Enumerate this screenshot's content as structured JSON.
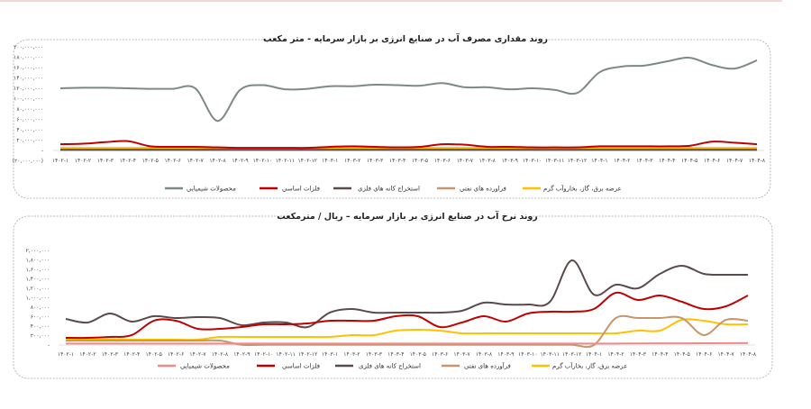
{
  "chart_data": [
    {
      "type": "line",
      "title": "روند مقداری مصرف آب در صنایع انرژی بر بازار سرمایه - متر مکعب",
      "xlabel": "",
      "ylabel": "",
      "ylim": [
        -20,
        200
      ],
      "y_unit_note": "millions",
      "yticks": [
        {
          "value": 200,
          "label": "۲۰۰,۰۰۰,۰۰۰"
        },
        {
          "value": 180,
          "label": "۱۸۰,۰۰۰,۰۰۰"
        },
        {
          "value": 160,
          "label": "۱۶۰,۰۰۰,۰۰۰"
        },
        {
          "value": 140,
          "label": "۱۴۰,۰۰۰,۰۰۰"
        },
        {
          "value": 120,
          "label": "۱۲۰,۰۰۰,۰۰۰"
        },
        {
          "value": 100,
          "label": "۱۰۰,۰۰۰,۰۰۰"
        },
        {
          "value": 80,
          "label": "۸۰,۰۰۰,۰۰۰"
        },
        {
          "value": 60,
          "label": "۶۰,۰۰۰,۰۰۰"
        },
        {
          "value": 40,
          "label": "۴۰,۰۰۰,۰۰۰"
        },
        {
          "value": 20,
          "label": "۲۰,۰۰۰,۰۰۰"
        },
        {
          "value": 0,
          "label": "-"
        },
        {
          "value": -20,
          "label": "(۲۰,۰۰۰,۰۰۰)"
        }
      ],
      "categories": [
        "۱۴۰۲-۱",
        "۱۴۰۲-۲",
        "۱۴۰۲-۳",
        "۱۴۰۲-۴",
        "۱۴۰۲-۵",
        "۱۴۰۲-۶",
        "۱۴۰۲-۷",
        "۱۴۰۲-۸",
        "۱۴۰۲-۹",
        "۱۴۰۲-۱۰",
        "۱۴۰۲-۱۱",
        "۱۴۰۲-۱۲",
        "۱۴۰۳-۱",
        "۱۴۰۳-۲",
        "۱۴۰۳-۳",
        "۱۴۰۳-۴",
        "۱۴۰۳-۵",
        "۱۴۰۳-۶",
        "۱۴۰۳-۷",
        "۱۴۰۳-۸",
        "۱۴۰۳-۹",
        "۱۴۰۳-۱۰",
        "۱۴۰۳-۱۱",
        "۱۴۰۳-۱۲",
        "۱۴۰۴-۱",
        "۱۴۰۴-۲",
        "۱۴۰۴-۳",
        "۱۴۰۴-۴",
        "۱۴۰۴-۵",
        "۱۴۰۴-۶",
        "۱۴۰۴-۷",
        "۱۴۰۴-۸"
      ],
      "legend_position": "bottom",
      "series": [
        {
          "name": "محصولات شيميايي",
          "color": "#7d8a84",
          "values": [
            120,
            121,
            121,
            120,
            119,
            119,
            120,
            57,
            117,
            126,
            118,
            119,
            124,
            124,
            127,
            126,
            125,
            130,
            122,
            122,
            118,
            120,
            117,
            111,
            151,
            162,
            164,
            172,
            179,
            165,
            158,
            174
          ]
        },
        {
          "name": "فلزات اساسي",
          "color": "#c00000",
          "values": [
            12,
            13,
            16,
            18,
            8,
            7,
            7,
            6,
            5,
            5,
            5,
            5,
            7,
            8,
            7,
            6,
            7,
            12,
            11,
            7,
            7,
            6,
            6,
            6,
            8,
            8,
            8,
            8,
            9,
            17,
            15,
            12
          ]
        },
        {
          "name": "استخراج کانه هاي فلزي",
          "color": "#5b4a4a",
          "values": [
            1,
            1,
            1,
            1,
            1,
            1,
            1,
            1,
            1,
            1,
            1,
            1,
            1,
            1,
            1,
            1,
            1,
            1,
            1,
            1,
            1,
            1,
            1,
            1,
            1,
            1,
            1,
            1,
            1,
            1,
            1,
            1
          ]
        },
        {
          "name": "فراورده هاي نفتي",
          "color": "#c8956b",
          "values": [
            2,
            2,
            2,
            2,
            2,
            2,
            2,
            2,
            2,
            2,
            2,
            2,
            2,
            2,
            2,
            2,
            2,
            2,
            2,
            2,
            2,
            2,
            2,
            2,
            2,
            2,
            2,
            2,
            2,
            2,
            2,
            2
          ]
        },
        {
          "name": "عرضه برق، گاز، بخاروآب گرم",
          "color": "#ffc000",
          "values": [
            5,
            5,
            5,
            5,
            5,
            5,
            5,
            5,
            5,
            5,
            5,
            5,
            5,
            5,
            5,
            5,
            5,
            5,
            5,
            5,
            5,
            5,
            5,
            5,
            5,
            5,
            5,
            5,
            5,
            5,
            5,
            5
          ]
        }
      ]
    },
    {
      "type": "line",
      "title": "روند نرخ آب در صنایع انرژی بر بازار سرمایه – ریال / مترمکعب",
      "xlabel": "",
      "ylabel": "",
      "ylim": [
        0,
        2000000
      ],
      "yticks": [
        {
          "value": 2000000,
          "label": "۲,۰۰۰,۰۰۰"
        },
        {
          "value": 1800000,
          "label": "۱,۸۰۰,۰۰۰"
        },
        {
          "value": 1600000,
          "label": "۱,۶۰۰,۰۰۰"
        },
        {
          "value": 1400000,
          "label": "۱,۴۰۰,۰۰۰"
        },
        {
          "value": 1200000,
          "label": "۱,۲۰۰,۰۰۰"
        },
        {
          "value": 1000000,
          "label": "۱,۰۰۰,۰۰۰"
        },
        {
          "value": 800000,
          "label": "۸۰۰,۰۰۰"
        },
        {
          "value": 600000,
          "label": "۶۰۰,۰۰۰"
        },
        {
          "value": 400000,
          "label": "۴۰۰,۰۰۰"
        },
        {
          "value": 200000,
          "label": "۲۰۰,۰۰۰"
        },
        {
          "value": 0,
          "label": "-"
        }
      ],
      "categories": [
        "۱۴۰۲-۱",
        "۱۴۰۲-۲",
        "۱۴۰۲-۳",
        "۱۴۰۲-۴",
        "۱۴۰۲-۵",
        "۱۴۰۲-۶",
        "۱۴۰۲-۷",
        "۱۴۰۲-۸",
        "۱۴۰۲-۹",
        "۱۴۰۲-۱۰",
        "۱۴۰۲-۱۱",
        "۱۴۰۲-۱۲",
        "۱۴۰۳-۱",
        "۱۴۰۳-۲",
        "۱۴۰۳-۳",
        "۱۴۰۳-۴",
        "۱۴۰۳-۵",
        "۱۴۰۳-۶",
        "۱۴۰۳-۷",
        "۱۴۰۳-۸",
        "۱۴۰۳-۹",
        "۱۴۰۳-۱۰",
        "۱۴۰۳-۱۱",
        "۱۴۰۳-۱۲",
        "۱۴۰۴-۱",
        "۱۴۰۴-۲",
        "۱۴۰۴-۳",
        "۱۴۰۴-۴",
        "۱۴۰۴-۵",
        "۱۴۰۴-۶",
        "۱۴۰۴-۷",
        "۱۴۰۴-۸"
      ],
      "legend_position": "bottom",
      "series": [
        {
          "name": "محصولات شیمیایی",
          "color": "#f08a8a",
          "values": [
            30000,
            30000,
            30000,
            30000,
            30000,
            30000,
            30000,
            30000,
            30000,
            30000,
            30000,
            30000,
            30000,
            30000,
            30000,
            30000,
            30000,
            30000,
            30000,
            30000,
            30000,
            30000,
            30000,
            30000,
            30000,
            32000,
            34000,
            35000,
            36000,
            38000,
            40000,
            40000
          ]
        },
        {
          "name": "فلزات اساسی",
          "color": "#c00000",
          "values": [
            152000,
            152000,
            171000,
            210000,
            514000,
            514000,
            343000,
            343000,
            381000,
            438000,
            438000,
            457000,
            514000,
            514000,
            514000,
            610000,
            610000,
            381000,
            476000,
            610000,
            495000,
            667000,
            705000,
            705000,
            762000,
            1105000,
            952000,
            1048000,
            914000,
            762000,
            819000,
            1048000
          ]
        },
        {
          "name": "استخراج کانه های فلزی",
          "color": "#5b4a4a",
          "values": [
            552000,
            476000,
            667000,
            495000,
            610000,
            571000,
            590000,
            571000,
            419000,
            476000,
            476000,
            381000,
            686000,
            762000,
            686000,
            686000,
            686000,
            686000,
            724000,
            895000,
            857000,
            857000,
            914000,
            1790000,
            1067000,
            1276000,
            1200000,
            1505000,
            1676000,
            1505000,
            1486000,
            1486000
          ]
        },
        {
          "name": "فرآورده های نفتی",
          "color": "#c8956b",
          "values": [
            95000,
            95000,
            95000,
            95000,
            95000,
            95000,
            95000,
            95000,
            5000,
            5000,
            5000,
            5000,
            5000,
            5000,
            5000,
            5000,
            5000,
            5000,
            5000,
            5000,
            5000,
            5000,
            5000,
            5000,
            0,
            571000,
            571000,
            571000,
            571000,
            210000,
            533000,
            514000
          ]
        },
        {
          "name": "عرضه برق، گاز، بخارآب گرم",
          "color": "#ffc000",
          "values": [
            114000,
            114000,
            114000,
            114000,
            114000,
            114000,
            114000,
            171000,
            171000,
            171000,
            171000,
            171000,
            171000,
            210000,
            210000,
            305000,
            324000,
            305000,
            248000,
            248000,
            248000,
            248000,
            248000,
            248000,
            248000,
            248000,
            305000,
            305000,
            533000,
            514000,
            438000,
            438000
          ]
        }
      ]
    }
  ]
}
